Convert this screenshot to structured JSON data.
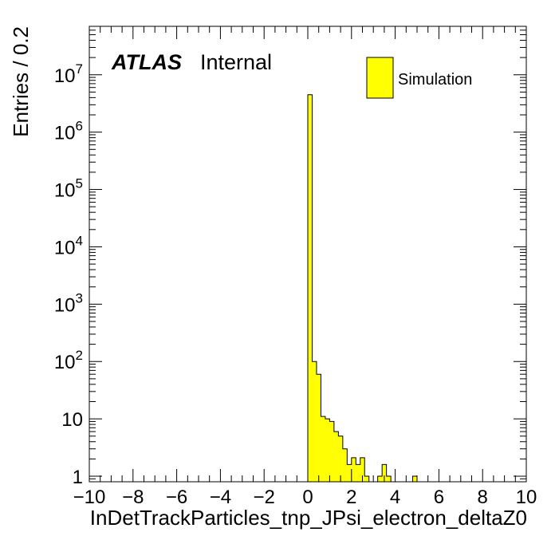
{
  "chart_data": {
    "type": "bar",
    "xlabel": "InDetTrackParticles_tnp_JPsi_electron_deltaZ0",
    "ylabel": "Entries / 0.2",
    "xlim": [
      -10,
      10
    ],
    "ylim": [
      0.8,
      70000000
    ],
    "yscale": "log",
    "bin_width": 0.2,
    "x_ticks": [
      -10,
      -8,
      -6,
      -4,
      -2,
      0,
      2,
      4,
      6,
      8,
      10
    ],
    "x_tick_labels": [
      "−10",
      "−8",
      "−6",
      "−4",
      "−2",
      "0",
      "2",
      "4",
      "6",
      "8",
      "10"
    ],
    "y_ticks": [
      {
        "value": 1,
        "base": "1",
        "exp": ""
      },
      {
        "value": 10,
        "base": "10",
        "exp": ""
      },
      {
        "value": 100,
        "base": "10",
        "exp": "2"
      },
      {
        "value": 1000,
        "base": "10",
        "exp": "3"
      },
      {
        "value": 10000,
        "base": "10",
        "exp": "4"
      },
      {
        "value": 100000,
        "base": "10",
        "exp": "5"
      },
      {
        "value": 1000000,
        "base": "10",
        "exp": "6"
      },
      {
        "value": 10000000,
        "base": "10",
        "exp": "7"
      }
    ],
    "series": [
      {
        "name": "Simulation",
        "color": "#ffff00",
        "bins": [
          {
            "low": 0.0,
            "value": 4500000
          },
          {
            "low": 0.2,
            "value": 100
          },
          {
            "low": 0.4,
            "value": 60
          },
          {
            "low": 0.6,
            "value": 11
          },
          {
            "low": 0.8,
            "value": 10
          },
          {
            "low": 1.0,
            "value": 9
          },
          {
            "low": 1.2,
            "value": 6
          },
          {
            "low": 1.4,
            "value": 5
          },
          {
            "low": 1.6,
            "value": 3
          },
          {
            "low": 1.8,
            "value": 1.6
          },
          {
            "low": 2.0,
            "value": 2.1
          },
          {
            "low": 2.2,
            "value": 1.6
          },
          {
            "low": 2.4,
            "value": 2.1
          },
          {
            "low": 2.6,
            "value": 1
          },
          {
            "low": 3.2,
            "value": 1
          },
          {
            "low": 3.4,
            "value": 1.6
          },
          {
            "low": 3.6,
            "value": 1
          },
          {
            "low": 4.8,
            "value": 1
          }
        ]
      }
    ],
    "legend_position": "top-right",
    "grid": false
  },
  "labels": {
    "experiment": "ATLAS",
    "status": "Internal",
    "legend_entry": "Simulation"
  },
  "colors": {
    "fill": "#ffff00",
    "line": "#000000"
  }
}
